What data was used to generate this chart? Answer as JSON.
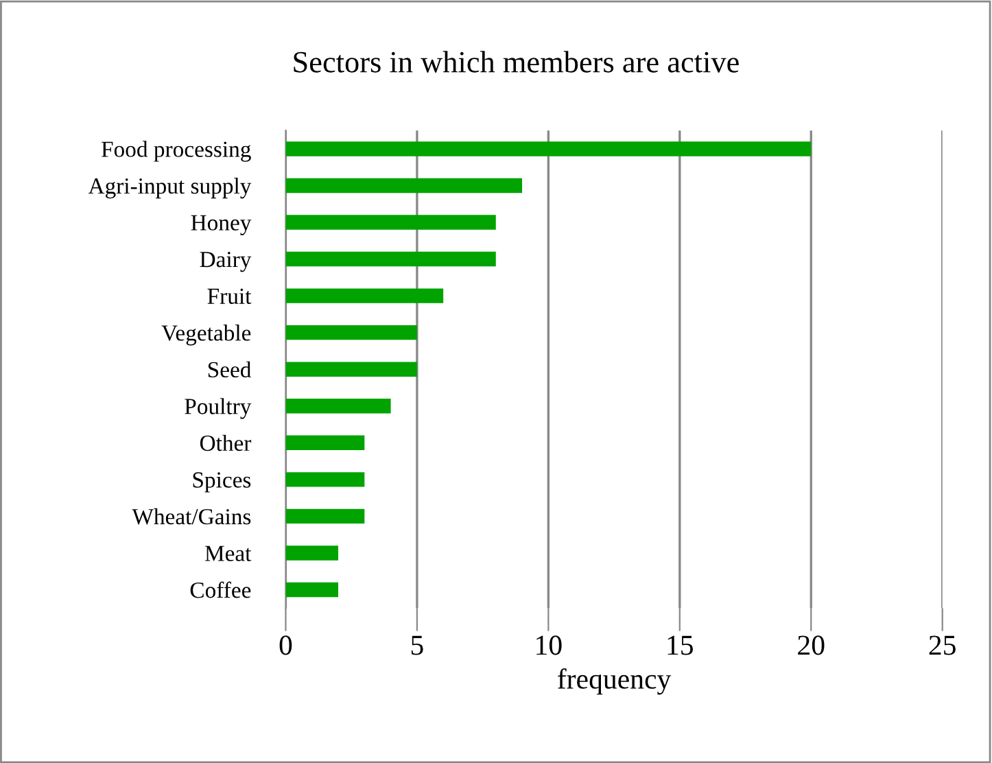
{
  "chart_data": {
    "type": "bar",
    "orientation": "horizontal",
    "title": "Sectors in which members are active",
    "xlabel": "frequency",
    "categories": [
      "Food processing",
      "Agri-input supply",
      "Honey",
      "Dairy",
      "Fruit",
      "Vegetable",
      "Seed",
      "Poultry",
      "Other",
      "Spices",
      "Wheat/Gains",
      "Meat",
      "Coffee"
    ],
    "values": [
      20,
      9,
      8,
      8,
      6,
      5,
      5,
      4,
      3,
      3,
      3,
      2,
      2
    ],
    "color": "#00a300",
    "xlim": [
      0,
      25
    ],
    "xticks": [
      0,
      5,
      10,
      15,
      20,
      25
    ],
    "grid": "x",
    "legend": false
  }
}
